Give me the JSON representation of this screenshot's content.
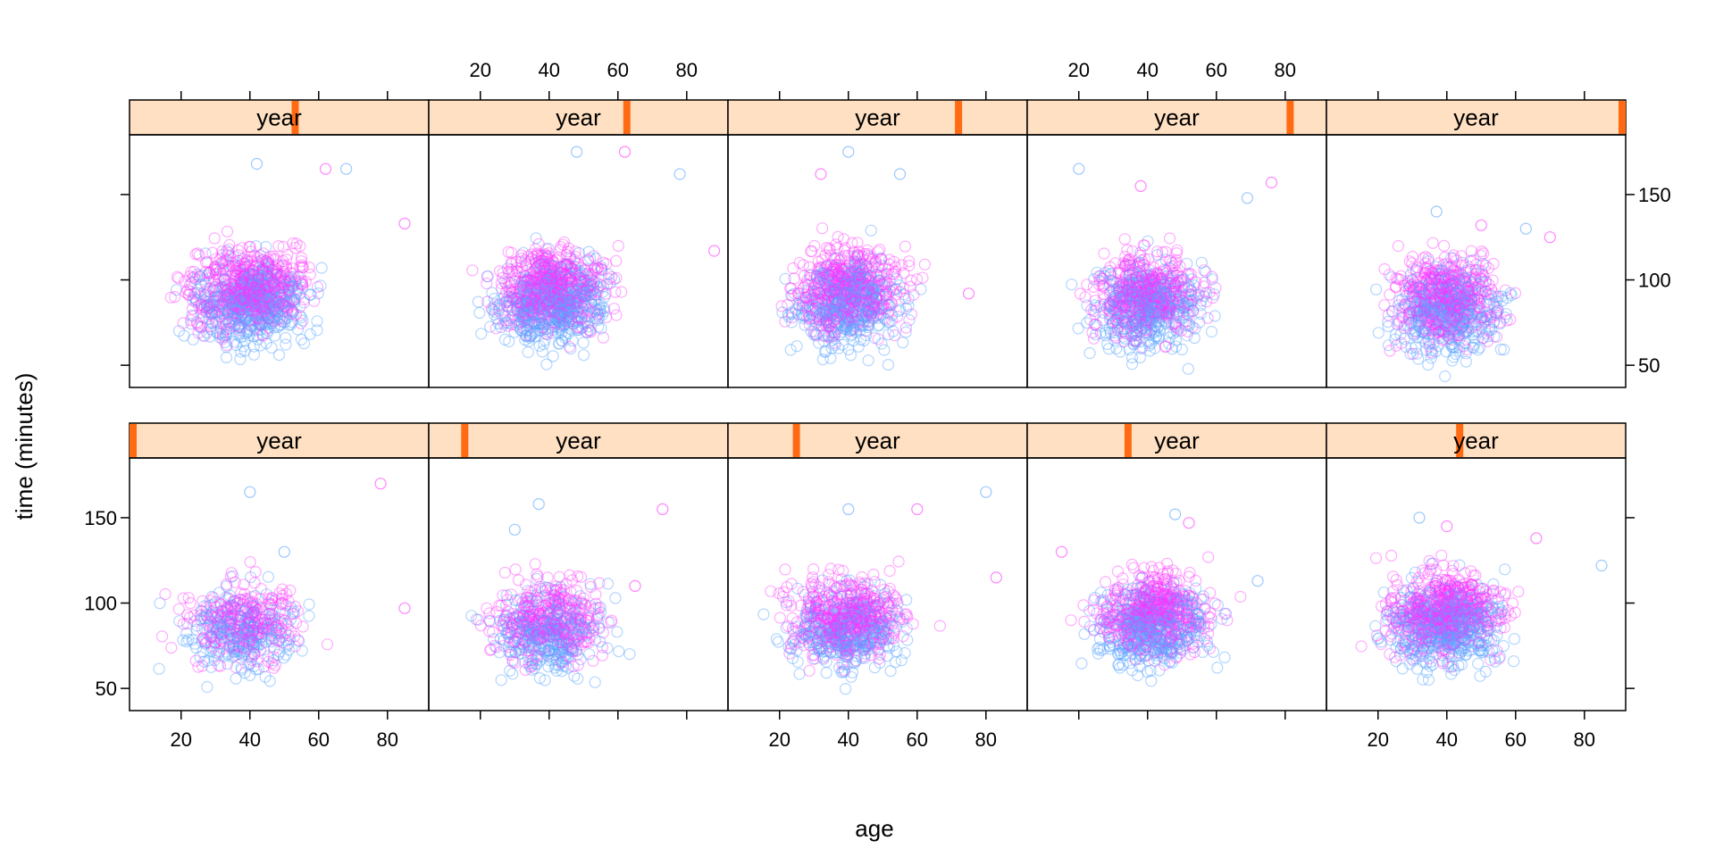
{
  "chart_data": {
    "type": "scatter",
    "xlabel": "age",
    "ylabel": "time (minutes)",
    "xlim": [
      5,
      92
    ],
    "ylim": [
      37,
      185
    ],
    "x_ticks": [
      20,
      40,
      60,
      80
    ],
    "y_ticks": [
      50,
      100,
      150
    ],
    "layout": {
      "columns": 5,
      "rows": 2
    },
    "strip_label": "year",
    "series_colors": {
      "male": "#59A4FF",
      "female": "#FF33FF"
    },
    "strip_fill": "#FFE0C2",
    "indicator_color": "#FF6A13",
    "panels": [
      {
        "strip": "year",
        "indicator": 0.0,
        "cx": 38,
        "cy": 88,
        "n": 520,
        "maxima": [
          [
            40,
            165
          ],
          [
            78,
            170
          ],
          [
            50,
            130
          ],
          [
            85,
            97
          ]
        ]
      },
      {
        "strip": "year",
        "indicator": 0.111,
        "cx": 40,
        "cy": 88,
        "n": 650,
        "maxima": [
          [
            37,
            158
          ],
          [
            73,
            155
          ],
          [
            30,
            143
          ],
          [
            65,
            110
          ]
        ]
      },
      {
        "strip": "year",
        "indicator": 0.222,
        "cx": 40,
        "cy": 90,
        "n": 800,
        "maxima": [
          [
            40,
            155
          ],
          [
            60,
            155
          ],
          [
            80,
            165
          ],
          [
            83,
            115
          ]
        ]
      },
      {
        "strip": "year",
        "indicator": 0.333,
        "cx": 42,
        "cy": 92,
        "n": 900,
        "maxima": [
          [
            48,
            152
          ],
          [
            52,
            147
          ],
          [
            72,
            113
          ],
          [
            15,
            130
          ]
        ]
      },
      {
        "strip": "year",
        "indicator": 0.444,
        "cx": 40,
        "cy": 93,
        "n": 1000,
        "maxima": [
          [
            32,
            150
          ],
          [
            40,
            145
          ],
          [
            85,
            122
          ],
          [
            66,
            138
          ]
        ]
      },
      {
        "strip": "year",
        "indicator": 0.555,
        "cx": 40,
        "cy": 93,
        "n": 1000,
        "maxima": [
          [
            42,
            168
          ],
          [
            62,
            165
          ],
          [
            68,
            165
          ],
          [
            85,
            133
          ]
        ]
      },
      {
        "strip": "year",
        "indicator": 0.666,
        "cx": 41,
        "cy": 93,
        "n": 1000,
        "maxima": [
          [
            48,
            175
          ],
          [
            62,
            175
          ],
          [
            78,
            162
          ],
          [
            88,
            117
          ]
        ]
      },
      {
        "strip": "year",
        "indicator": 0.777,
        "cx": 40,
        "cy": 93,
        "n": 900,
        "maxima": [
          [
            40,
            175
          ],
          [
            32,
            162
          ],
          [
            55,
            162
          ],
          [
            75,
            92
          ]
        ]
      },
      {
        "strip": "year",
        "indicator": 0.888,
        "cx": 40,
        "cy": 90,
        "n": 850,
        "maxima": [
          [
            20,
            165
          ],
          [
            76,
            157
          ],
          [
            69,
            148
          ],
          [
            38,
            155
          ]
        ]
      },
      {
        "strip": "year",
        "indicator": 1.0,
        "cx": 40,
        "cy": 88,
        "n": 850,
        "maxima": [
          [
            37,
            140
          ],
          [
            50,
            132
          ],
          [
            63,
            130
          ],
          [
            70,
            125
          ]
        ]
      }
    ]
  }
}
